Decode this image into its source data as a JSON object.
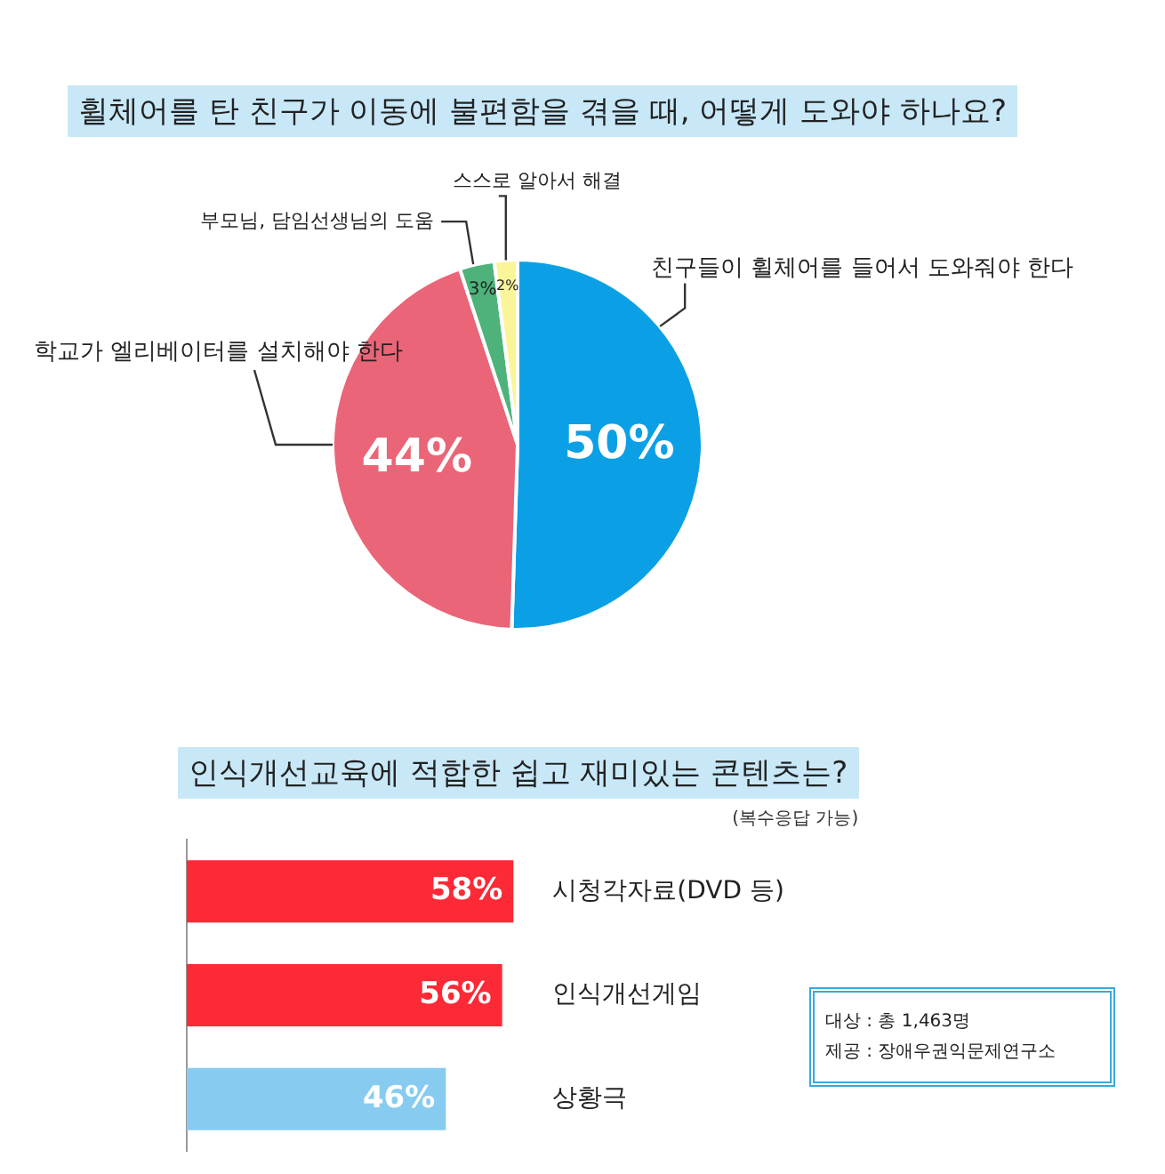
{
  "chart_data": [
    {
      "type": "pie",
      "title": "휠체어를 탄 친구가 이동에 불편함을 겪을 때, 어떻게 도와야 하나요?",
      "categories": [
        "친구들이 휠체어를 들어서 도와줘야 한다",
        "학교가 엘리베이터를 설치해야 한다",
        "부모님, 담임선생님의 도움",
        "스스로 알아서 해결"
      ],
      "values": [
        50,
        44,
        3,
        2
      ],
      "value_labels": [
        "50%",
        "44%",
        "3%",
        "2%"
      ],
      "colors": [
        "#0ba0e6",
        "#e96577",
        "#4db37a",
        "#fbf59a"
      ],
      "legend": false
    },
    {
      "type": "bar",
      "orientation": "horizontal",
      "title": "인식개선교육에 적합한 쉽고 재미있는 콘텐츠는?",
      "categories": [
        "시청각자료(DVD 등)",
        "인식개선게임",
        "상황극"
      ],
      "values": [
        58,
        56,
        46
      ],
      "value_labels": [
        "58%",
        "56%",
        "46%"
      ],
      "colors": [
        "#fb2a36",
        "#fb2a36",
        "#87ccf0"
      ],
      "tick_labels": false,
      "legend": false,
      "annotations": [
        "(복수응답 가능)",
        "대상 : 총 1,463명",
        "제공 : 장애우권익문제연구소"
      ]
    }
  ]
}
